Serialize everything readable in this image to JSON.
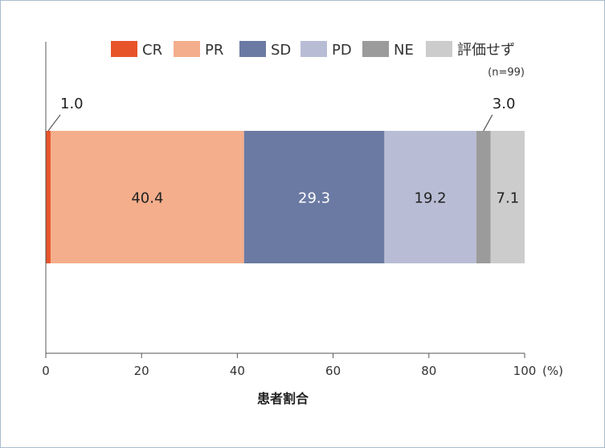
{
  "chart_data": {
    "type": "bar",
    "orientation": "horizontal-stacked",
    "categories": [
      ""
    ],
    "series": [
      {
        "name": "CR",
        "values": [
          1.0
        ],
        "color": "#e8542a"
      },
      {
        "name": "PR",
        "values": [
          40.4
        ],
        "color": "#f4ae8b"
      },
      {
        "name": "SD",
        "values": [
          29.3
        ],
        "color": "#6b7aa3"
      },
      {
        "name": "PD",
        "values": [
          19.2
        ],
        "color": "#b8bdd5"
      },
      {
        "name": "NE",
        "values": [
          3.0
        ],
        "color": "#9b9b9b"
      },
      {
        "name": "評価せず",
        "values": [
          7.1
        ],
        "color": "#cccccc"
      }
    ],
    "data_labels": [
      "1.0",
      "40.4",
      "29.3",
      "19.2",
      "3.0",
      "7.1"
    ],
    "xlabel": "患者割合",
    "x_unit": "(%)",
    "xlim": [
      0,
      100
    ],
    "xticks": [
      "0",
      "20",
      "40",
      "60",
      "80",
      "100"
    ],
    "note": "(n=99)",
    "legend_position": "top-right",
    "grid": false
  }
}
